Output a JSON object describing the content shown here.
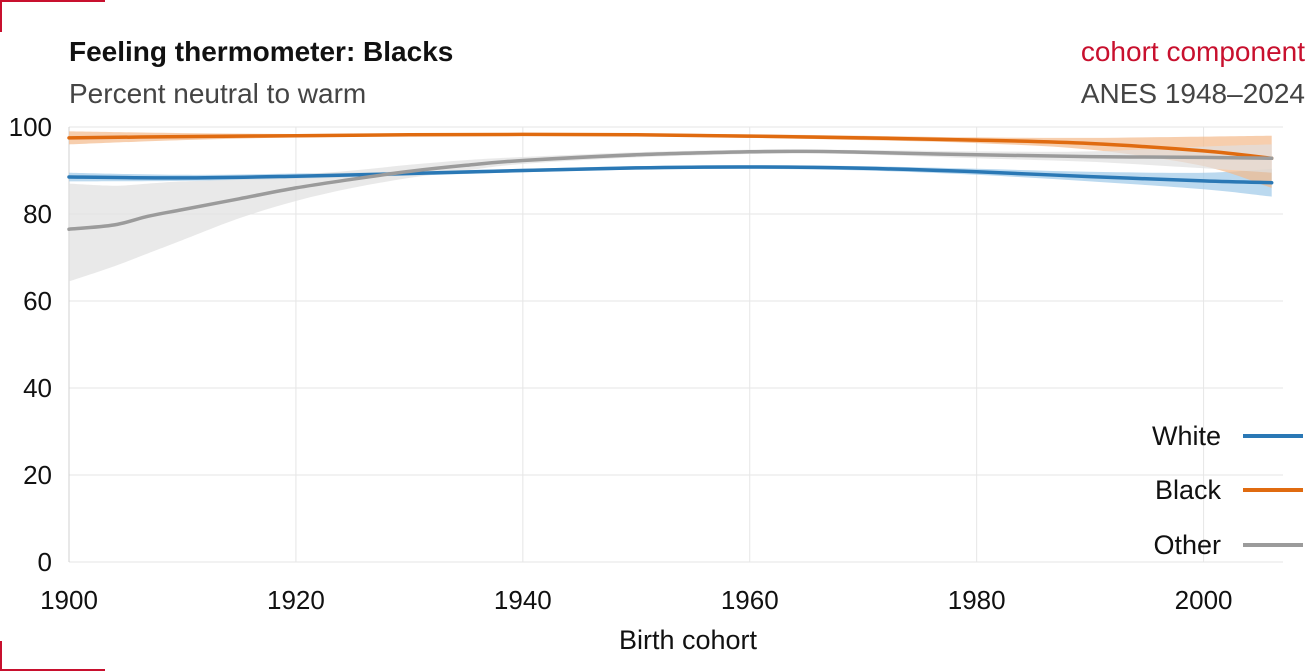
{
  "header": {
    "title": "Feeling thermometer: Blacks",
    "subtitle": "Percent neutral to warm",
    "tag": "cohort component",
    "source": "ANES 1948–2024"
  },
  "chart_data": {
    "type": "line",
    "xlabel": "Birth cohort",
    "ylabel": "",
    "xlim": [
      1900,
      2007
    ],
    "ylim": [
      0,
      100
    ],
    "x_ticks": [
      1900,
      1920,
      1940,
      1960,
      1980,
      2000
    ],
    "y_ticks": [
      0,
      20,
      40,
      60,
      80,
      100
    ],
    "grid": true,
    "legend_position": "bottom-right",
    "series": [
      {
        "name": "White",
        "color": "#2a78b5",
        "band_color": "#9ec9e8",
        "x": [
          1900,
          1910,
          1920,
          1930,
          1940,
          1950,
          1960,
          1970,
          1980,
          1990,
          2000,
          2006
        ],
        "y": [
          88.5,
          88.3,
          88.7,
          89.3,
          90.0,
          90.6,
          90.8,
          90.5,
          89.7,
          88.6,
          87.6,
          87.2
        ],
        "lower": [
          87.5,
          87.6,
          88.1,
          88.8,
          89.6,
          90.2,
          90.4,
          90.0,
          89.0,
          87.5,
          85.7,
          84.0
        ],
        "upper": [
          89.5,
          89.0,
          89.3,
          89.8,
          90.4,
          91.0,
          91.2,
          91.0,
          90.4,
          89.7,
          89.5,
          90.4
        ]
      },
      {
        "name": "Black",
        "color": "#e06b10",
        "band_color": "#f3b98a",
        "x": [
          1900,
          1910,
          1920,
          1930,
          1940,
          1950,
          1960,
          1970,
          1980,
          1990,
          2000,
          2006
        ],
        "y": [
          97.5,
          97.8,
          98.0,
          98.2,
          98.3,
          98.2,
          97.9,
          97.5,
          97.0,
          96.2,
          94.5,
          92.8
        ],
        "lower": [
          96.0,
          97.0,
          97.6,
          97.9,
          98.0,
          97.9,
          97.5,
          97.0,
          96.3,
          94.8,
          91.0,
          86.0
        ],
        "upper": [
          99.0,
          98.6,
          98.4,
          98.5,
          98.6,
          98.5,
          98.3,
          98.0,
          97.6,
          97.5,
          97.8,
          98.0
        ]
      },
      {
        "name": "Other",
        "color": "#9b9b9b",
        "band_color": "#e0e0e0",
        "x": [
          1900,
          1904,
          1907,
          1910,
          1915,
          1920,
          1925,
          1930,
          1935,
          1940,
          1950,
          1960,
          1965,
          1970,
          1980,
          1990,
          2000,
          2006
        ],
        "y": [
          76.5,
          77.5,
          79.5,
          81.0,
          83.5,
          86.0,
          88.0,
          89.8,
          91.2,
          92.3,
          93.6,
          94.3,
          94.4,
          94.2,
          93.6,
          93.2,
          93.0,
          92.8
        ],
        "lower": [
          64.5,
          68.0,
          71.0,
          74.0,
          79.0,
          83.0,
          86.0,
          88.3,
          90.0,
          91.5,
          93.0,
          93.8,
          94.0,
          93.7,
          92.8,
          92.0,
          90.5,
          89.5
        ],
        "upper": [
          87.0,
          86.5,
          87.0,
          87.5,
          88.0,
          89.0,
          90.0,
          91.3,
          92.4,
          93.1,
          94.2,
          94.8,
          94.8,
          94.7,
          94.4,
          94.4,
          95.5,
          96.0
        ]
      }
    ]
  }
}
